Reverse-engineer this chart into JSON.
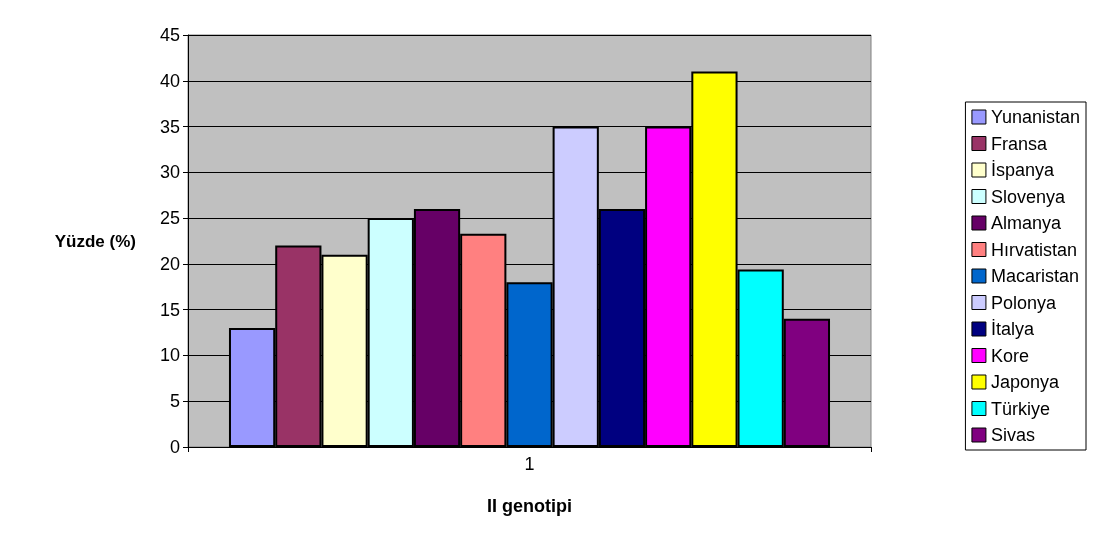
{
  "chart_data": {
    "type": "bar",
    "xlabel": "II genotipi",
    "ylabel": "Yüzde (%)",
    "categories": [
      "1"
    ],
    "series": [
      {
        "name": "Yunanistan",
        "color": "#9999ff",
        "values": [
          13
        ]
      },
      {
        "name": "Fransa",
        "color": "#993366",
        "values": [
          22
        ]
      },
      {
        "name": "İspanya",
        "color": "#ffffcc",
        "values": [
          21
        ]
      },
      {
        "name": "Slovenya",
        "color": "#ccffff",
        "values": [
          25
        ]
      },
      {
        "name": "Almanya",
        "color": "#660066",
        "values": [
          26
        ]
      },
      {
        "name": "Hırvatistan",
        "color": "#ff8080",
        "values": [
          23.3
        ]
      },
      {
        "name": "Macaristan",
        "color": "#0066cc",
        "values": [
          18
        ]
      },
      {
        "name": "Polonya",
        "color": "#ccccff",
        "values": [
          35
        ]
      },
      {
        "name": "İtalya",
        "color": "#000080",
        "values": [
          26
        ]
      },
      {
        "name": "Kore",
        "color": "#ff00ff",
        "values": [
          35
        ]
      },
      {
        "name": "Japonya",
        "color": "#ffff00",
        "values": [
          41
        ]
      },
      {
        "name": "Türkiye",
        "color": "#00ffff",
        "values": [
          19.4
        ]
      },
      {
        "name": "Sivas",
        "color": "#800080",
        "values": [
          14
        ]
      }
    ],
    "ylim": [
      0,
      45
    ],
    "yticks": [
      0,
      5,
      10,
      15,
      20,
      25,
      30,
      35,
      40,
      45
    ],
    "grid": "y",
    "legend": "right"
  }
}
